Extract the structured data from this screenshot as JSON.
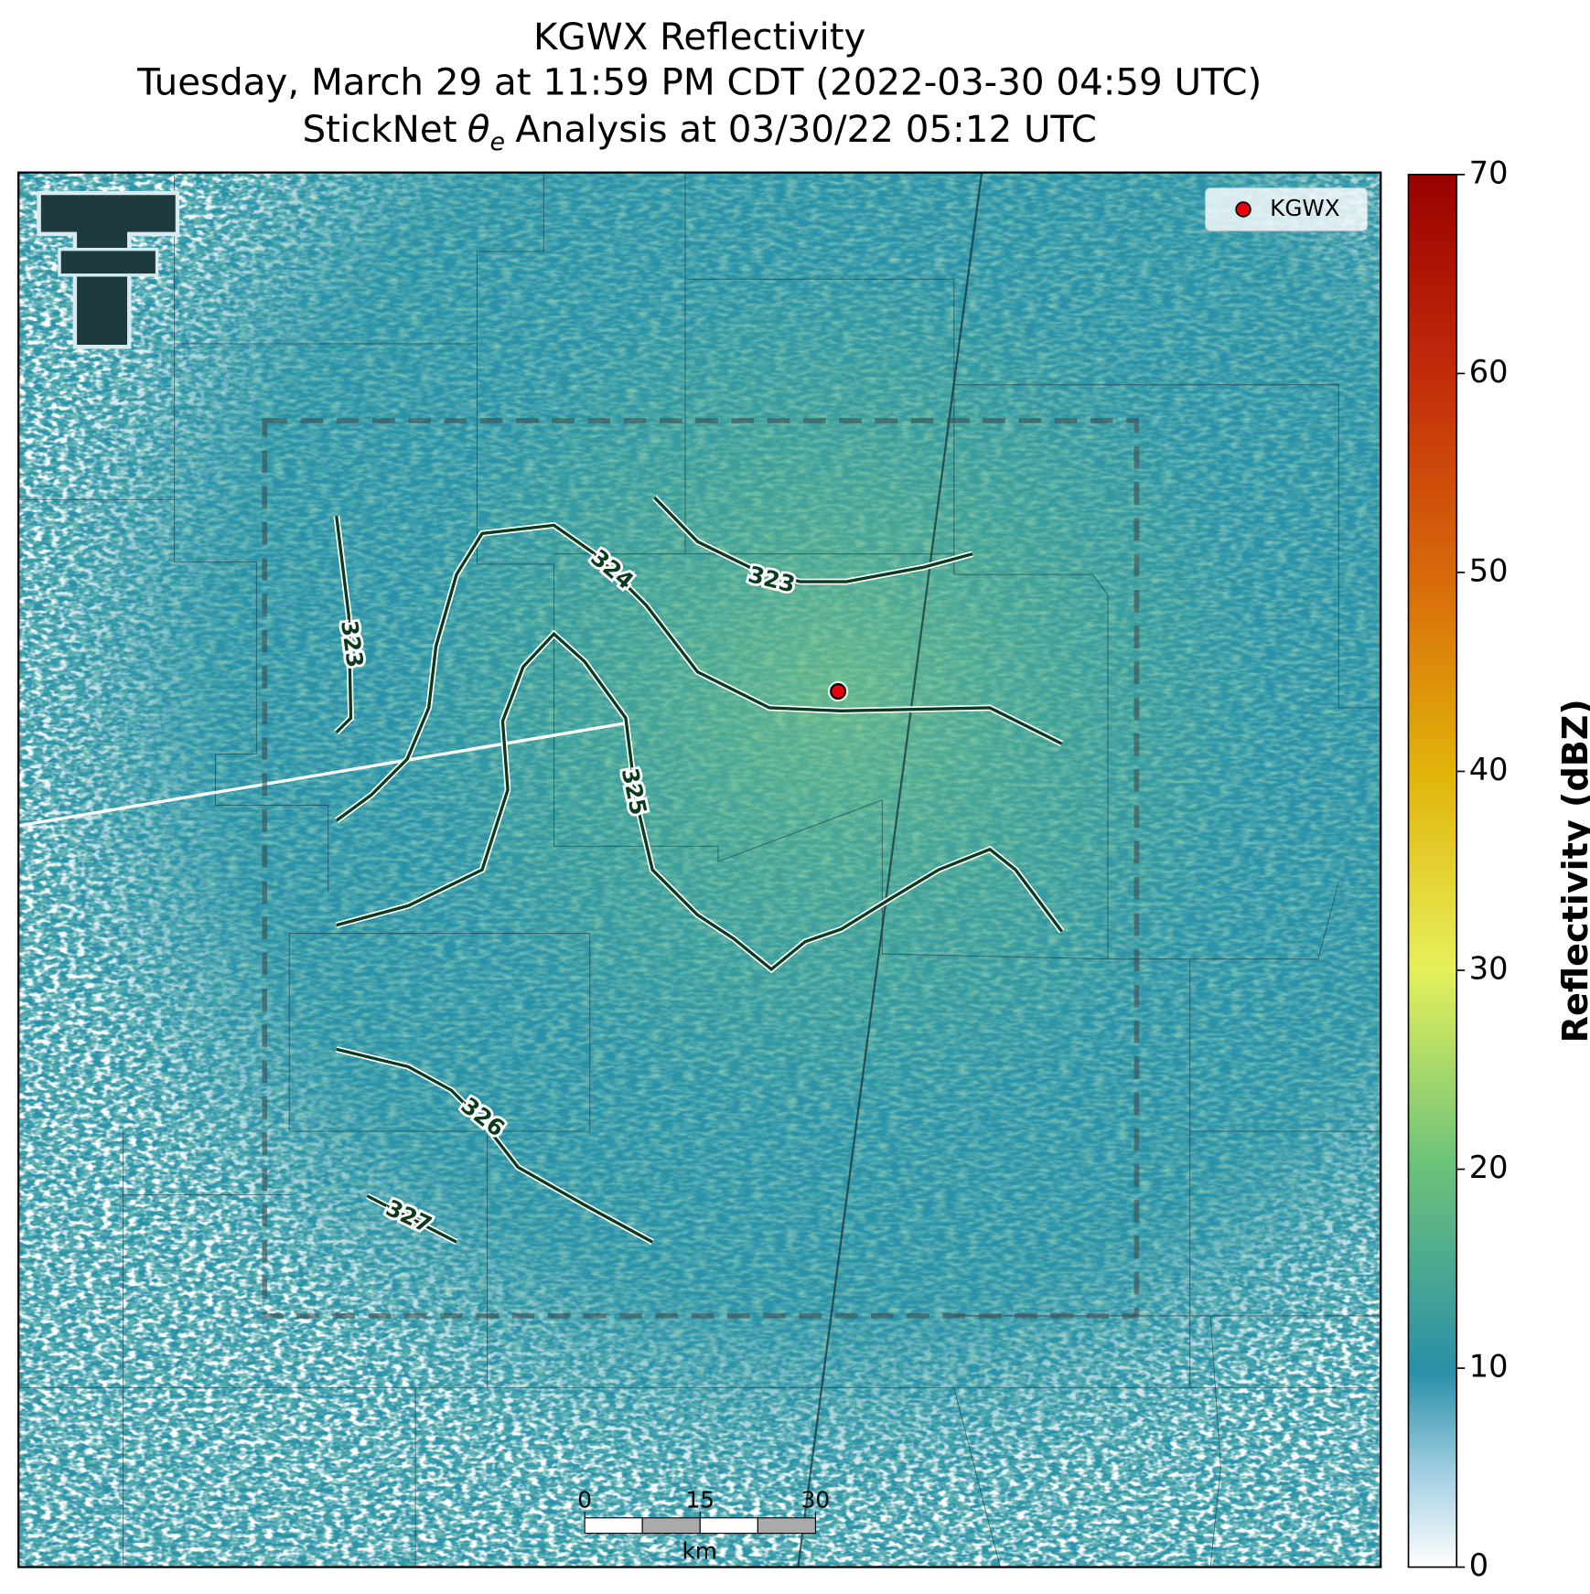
{
  "header": {
    "title_lines": [
      "KGWX Reflectivity",
      "Tuesday, March 29 at 11:59 PM CDT (2022-03-30 04:59 UTC)"
    ],
    "subtitle": {
      "prefix": "StickNet",
      "symbol": "θ",
      "subscript": "e",
      "suffix": "Analysis at 03/30/22 05:12 UTC"
    }
  },
  "map": {
    "radar_legend": "KGWX",
    "contours": [
      323,
      324,
      323,
      325,
      326,
      327
    ],
    "scale_bar": {
      "ticks": [
        0,
        15,
        30
      ],
      "unit": "km"
    }
  },
  "colorbar": {
    "label": "Reflectivity (dBZ)",
    "lim": [
      0,
      70
    ],
    "ticks": [
      0,
      10,
      20,
      30,
      40,
      50,
      60,
      70
    ]
  }
}
